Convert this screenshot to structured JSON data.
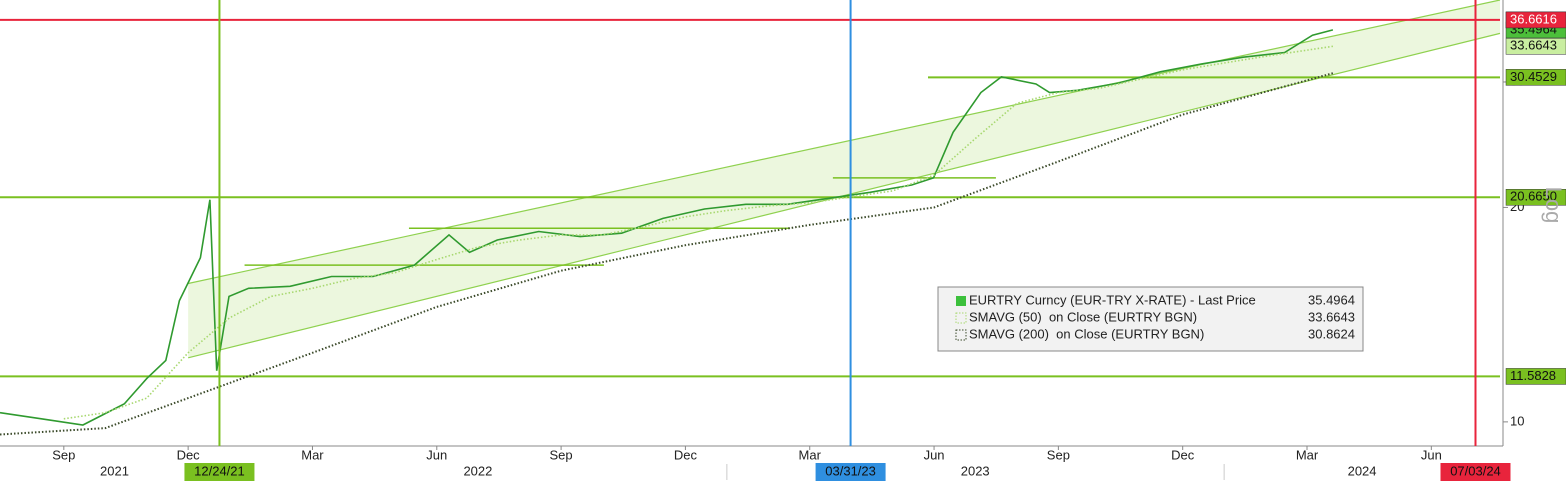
{
  "chart_data": {
    "type": "line",
    "log_scale": true,
    "scale_label": "Log",
    "xlim": [
      "2021-07-15",
      "2024-07-21"
    ],
    "ylim": [
      9.25,
      39.1
    ],
    "yticks": [
      10,
      20,
      30
    ],
    "xticks": [
      {
        "value": "2021-09-01",
        "label": "Sep"
      },
      {
        "value": "2021-12-01",
        "label": "Dec"
      },
      {
        "value": "2022-03-01",
        "label": "Mar"
      },
      {
        "value": "2022-06-01",
        "label": "Jun"
      },
      {
        "value": "2022-09-01",
        "label": "Sep"
      },
      {
        "value": "2022-12-01",
        "label": "Dec"
      },
      {
        "value": "2023-03-01",
        "label": "Mar"
      },
      {
        "value": "2023-06-01",
        "label": "Jun"
      },
      {
        "value": "2023-09-01",
        "label": "Sep"
      },
      {
        "value": "2023-12-01",
        "label": "Dec"
      },
      {
        "value": "2024-03-01",
        "label": "Mar"
      },
      {
        "value": "2024-06-01",
        "label": "Jun"
      }
    ],
    "x_years": [
      2021,
      2022,
      2023,
      2024
    ],
    "series": [
      {
        "name": "EURTRY Curncy (EUR-TRY X-RATE) - Last Price",
        "color": "#2f9a2f",
        "last": 35.4964,
        "x": [
          "2021-07-15",
          "2021-08-15",
          "2021-09-15",
          "2021-10-15",
          "2021-11-01",
          "2021-11-15",
          "2021-11-25",
          "2021-12-10",
          "2021-12-17",
          "2021-12-22",
          "2021-12-31",
          "2022-01-15",
          "2022-02-15",
          "2022-03-15",
          "2022-04-15",
          "2022-05-15",
          "2022-06-10",
          "2022-06-25",
          "2022-07-15",
          "2022-08-15",
          "2022-09-15",
          "2022-10-15",
          "2022-11-15",
          "2022-12-15",
          "2023-01-15",
          "2023-02-15",
          "2023-03-15",
          "2023-04-15",
          "2023-05-15",
          "2023-05-31",
          "2023-06-15",
          "2023-07-05",
          "2023-07-20",
          "2023-08-15",
          "2023-08-25",
          "2023-09-15",
          "2023-10-15",
          "2023-11-15",
          "2023-12-15",
          "2024-01-15",
          "2024-02-15",
          "2024-03-05",
          "2024-03-20"
        ],
        "values": [
          10.3,
          10.1,
          9.9,
          10.6,
          11.5,
          12.2,
          14.8,
          17.0,
          20.5,
          11.8,
          15.0,
          15.4,
          15.5,
          16.0,
          16.0,
          16.6,
          18.3,
          17.3,
          18.0,
          18.5,
          18.2,
          18.4,
          19.3,
          19.9,
          20.2,
          20.2,
          20.6,
          21.0,
          21.5,
          22.0,
          25.5,
          29.0,
          30.5,
          29.8,
          29.0,
          29.2,
          29.9,
          31.0,
          31.8,
          32.5,
          33.0,
          34.9,
          35.4964
        ]
      },
      {
        "name": "SMAVG (50)  on Close (EURTRY BGN)",
        "color": "#a8d870",
        "last": 33.6643,
        "x": [
          "2021-09-01",
          "2021-10-01",
          "2021-11-01",
          "2021-12-01",
          "2022-01-01",
          "2022-02-01",
          "2022-03-01",
          "2022-04-01",
          "2022-05-01",
          "2022-06-01",
          "2022-07-01",
          "2022-08-01",
          "2022-09-01",
          "2022-10-01",
          "2022-11-01",
          "2022-12-01",
          "2023-01-01",
          "2023-02-01",
          "2023-03-01",
          "2023-04-01",
          "2023-05-01",
          "2023-06-01",
          "2023-07-01",
          "2023-08-01",
          "2023-09-01",
          "2023-10-01",
          "2023-11-01",
          "2023-12-01",
          "2024-01-01",
          "2024-02-01",
          "2024-03-20"
        ],
        "values": [
          10.1,
          10.3,
          10.8,
          12.5,
          14.0,
          15.0,
          15.4,
          15.9,
          16.2,
          16.9,
          17.6,
          18.0,
          18.3,
          18.3,
          18.8,
          19.4,
          19.8,
          20.1,
          20.3,
          20.7,
          21.1,
          22.2,
          25.0,
          28.0,
          29.0,
          29.4,
          30.3,
          31.2,
          31.9,
          32.6,
          33.6643
        ]
      },
      {
        "name": "SMAVG (200)  on Close (EURTRY BGN)",
        "color": "#3b4a2a",
        "last": 30.8624,
        "x": [
          "2021-07-15",
          "2021-10-01",
          "2021-12-01",
          "2022-03-01",
          "2022-06-01",
          "2022-09-01",
          "2022-12-01",
          "2023-03-01",
          "2023-06-01",
          "2023-09-01",
          "2023-12-01",
          "2024-03-20"
        ],
        "values": [
          9.6,
          9.8,
          10.8,
          12.5,
          14.5,
          16.3,
          17.7,
          18.9,
          20.0,
          23.2,
          27.0,
          30.8624
        ]
      }
    ],
    "channel": {
      "x": [
        "2021-12-01",
        "2024-07-21"
      ],
      "upper": [
        15.64,
        39.1
      ],
      "lower": [
        12.3,
        35.1
      ],
      "color": "#8fd14f"
    },
    "segments": [
      {
        "x": [
          "2022-01-12",
          "2022-10-02"
        ],
        "value": 16.6
      },
      {
        "x": [
          "2022-05-11",
          "2023-02-17"
        ],
        "value": 18.7
      },
      {
        "x": [
          "2023-03-18",
          "2023-07-16"
        ],
        "value": 22.0
      }
    ],
    "levels": [
      {
        "value": 36.6616,
        "color": "#e8243c"
      },
      {
        "value": 30.4529,
        "color": "#7ac020",
        "from": "2023-05-27"
      },
      {
        "value": 20.665,
        "label": "20.6650",
        "color": "#7ac020"
      },
      {
        "value": 11.5828,
        "color": "#7ac020"
      }
    ],
    "markers": [
      {
        "value": "2021-12-24",
        "label": "12/24/21",
        "color": "#7ac020"
      },
      {
        "value": "2023-03-31",
        "label": "03/31/23",
        "color": "#2f8fe0"
      },
      {
        "value": "2024-07-03",
        "label": "07/03/24",
        "color": "#e8243c"
      }
    ]
  }
}
